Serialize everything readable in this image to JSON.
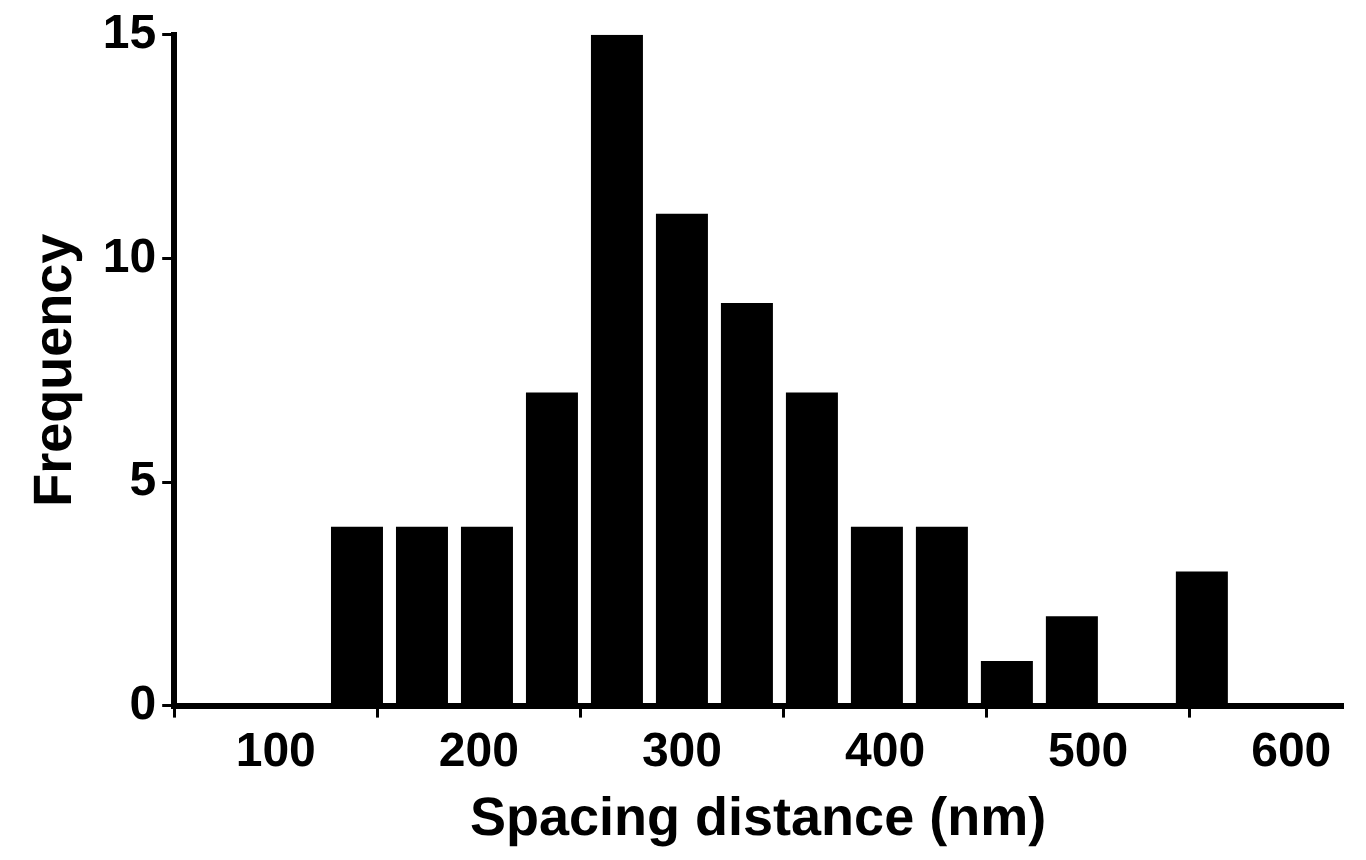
{
  "chart_data": {
    "type": "histogram",
    "xlabel": "Spacing distance (nm)",
    "ylabel": "Frequency",
    "bins": [
      124,
      156,
      188,
      220,
      252,
      284,
      316,
      348,
      380,
      412,
      444,
      476,
      508,
      540,
      572
    ],
    "values": [
      4,
      4,
      4,
      7,
      15,
      11,
      9,
      7,
      4,
      4,
      1,
      2,
      0,
      3
    ],
    "color": "#000000",
    "xlim": [
      50,
      625
    ],
    "xticks": [
      100,
      200,
      300,
      400,
      500,
      600
    ],
    "ylim": [
      0,
      15
    ],
    "yticks": [
      0,
      5,
      10,
      15
    ],
    "grid": false,
    "legend": false
  }
}
